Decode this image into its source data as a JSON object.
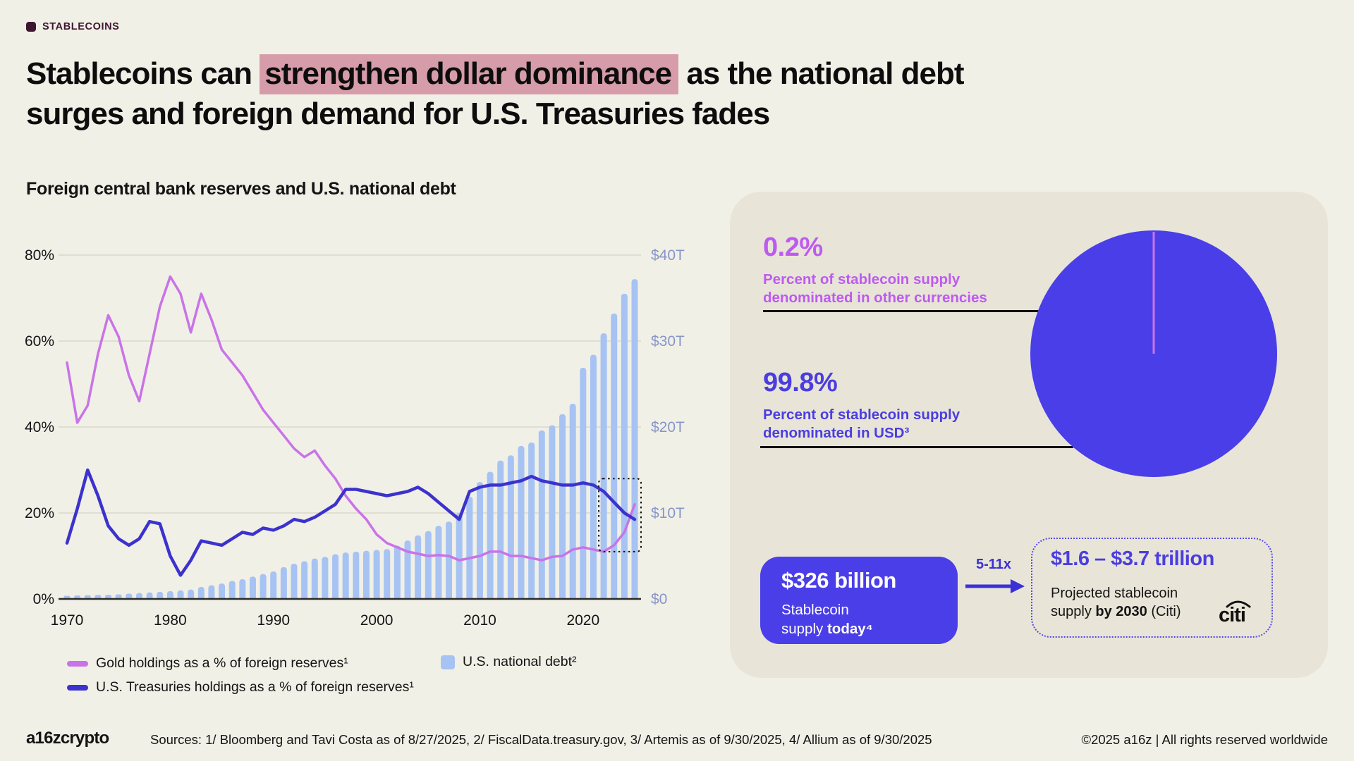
{
  "colors": {
    "background": "#F1F0E7",
    "panel_bg": "#E8E5D8",
    "tag": "#3F1630",
    "highlight_bg": "#D69CA9",
    "grid": "#DAD8CC",
    "right_axis_text": "#8796C8",
    "stat_purple": "#BE5AF0",
    "stat_indigo": "#4B3EDF",
    "pie_indigo": "#4A3EE8",
    "arrow": "#3B30D6",
    "dotted_border": "#5348E8"
  },
  "tag": {
    "label": "STABLECOINS"
  },
  "headline": {
    "line1_pre": "Stablecoins can ",
    "line1_highlight": "strengthen dollar dominance",
    "line1_post": " as the national debt",
    "line2": "surges and foreign demand for U.S. Treasuries fades"
  },
  "chart": {
    "title": "Foreign central bank reserves and U.S. national debt"
  },
  "chart_data": {
    "type": "combo-bar-line",
    "title": "Foreign central bank reserves and U.S. national debt",
    "years": [
      1970,
      1971,
      1972,
      1973,
      1974,
      1975,
      1976,
      1977,
      1978,
      1979,
      1980,
      1981,
      1982,
      1983,
      1984,
      1985,
      1986,
      1987,
      1988,
      1989,
      1990,
      1991,
      1992,
      1993,
      1994,
      1995,
      1996,
      1997,
      1998,
      1999,
      2000,
      2001,
      2002,
      2003,
      2004,
      2005,
      2006,
      2007,
      2008,
      2009,
      2010,
      2011,
      2012,
      2013,
      2014,
      2015,
      2016,
      2017,
      2018,
      2019,
      2020,
      2021,
      2022,
      2023,
      2024,
      2025
    ],
    "series": [
      {
        "name": "Gold holdings as a % of foreign reserves¹",
        "type": "line",
        "axis": "left",
        "color": "#C973E8",
        "values": [
          55,
          41,
          45,
          57,
          66,
          61,
          52,
          46,
          57,
          68,
          75,
          71,
          62,
          71,
          65,
          58,
          55,
          52,
          48,
          44,
          41,
          38,
          35,
          33,
          34.5,
          31,
          28,
          24,
          21,
          18.5,
          15,
          13,
          12,
          11,
          10.5,
          10,
          10.2,
          10,
          9,
          9.5,
          10,
          11,
          11,
          10,
          10,
          9.5,
          9,
          9.8,
          10,
          11.5,
          12,
          11.5,
          11,
          12.5,
          15.5,
          22
        ]
      },
      {
        "name": "U.S. Treasuries holdings as a % of foreign reserves¹",
        "type": "line",
        "axis": "left",
        "color": "#3C32CD",
        "values": [
          13,
          21,
          30,
          24,
          17,
          14,
          12.5,
          14,
          18,
          17.5,
          10,
          5.5,
          9,
          13.5,
          13,
          12.5,
          14,
          15.5,
          15,
          16.5,
          16,
          17,
          18.5,
          18,
          19,
          20.5,
          22,
          25.5,
          25.5,
          25,
          24.5,
          24,
          24.5,
          25,
          26,
          24.5,
          22.5,
          20.5,
          18.5,
          25,
          26,
          26.5,
          26.5,
          27,
          27.5,
          28.5,
          27.5,
          27,
          26.5,
          26.5,
          27,
          26.5,
          25,
          22.5,
          20,
          18.5
        ]
      },
      {
        "name": "U.S. national debt²",
        "type": "bar",
        "axis": "right",
        "color": "#A6C3F3",
        "values": [
          0.37,
          0.4,
          0.43,
          0.46,
          0.48,
          0.53,
          0.62,
          0.7,
          0.77,
          0.83,
          0.91,
          1.0,
          1.1,
          1.4,
          1.6,
          1.8,
          2.1,
          2.3,
          2.6,
          2.9,
          3.2,
          3.7,
          4.1,
          4.4,
          4.7,
          4.9,
          5.2,
          5.4,
          5.5,
          5.6,
          5.7,
          5.8,
          6.2,
          6.8,
          7.4,
          7.9,
          8.5,
          9.0,
          10.0,
          11.9,
          13.6,
          14.8,
          16.1,
          16.7,
          17.8,
          18.2,
          19.6,
          20.2,
          21.5,
          22.7,
          26.9,
          28.4,
          30.9,
          33.2,
          35.5,
          37.2
        ]
      }
    ],
    "left_axis": {
      "range": [
        0,
        80
      ],
      "tick_values": [
        0,
        20,
        40,
        60,
        80
      ],
      "tick_labels": [
        "0%",
        "20%",
        "40%",
        "60%",
        "80%"
      ]
    },
    "right_axis": {
      "range": [
        0,
        40
      ],
      "tick_values": [
        0,
        10,
        20,
        30,
        40
      ],
      "tick_labels": [
        "$0",
        "$10T",
        "$20T",
        "$30T",
        "$40T"
      ]
    },
    "x_ticks": {
      "values": [
        1970,
        1980,
        1990,
        2000,
        2010,
        2020
      ],
      "labels": [
        "1970",
        "1980",
        "1990",
        "2000",
        "2010",
        "2020"
      ]
    },
    "annotation_box": {
      "year_start": 2022,
      "year_end": 2025,
      "value_min": 11,
      "value_max": 28,
      "axis": "left"
    },
    "grid": true,
    "legend_position": "bottom"
  },
  "panel": {
    "stat_other": {
      "value": "0.2%",
      "caption": "Percent of stablecoin supply\ndenominated in other currencies"
    },
    "stat_usd": {
      "value": "99.8%",
      "caption": "Percent of stablecoin supply\ndenominated in USD³"
    },
    "pie": {
      "type": "pie",
      "slices": [
        {
          "label": "Stablecoin supply denominated in USD",
          "value": 99.8,
          "color": "#4A3EE8"
        },
        {
          "label": "Stablecoin supply denominated in other currencies",
          "value": 0.2,
          "color": "#C973E8"
        }
      ]
    },
    "supply_box": {
      "value": "$326 billion",
      "line1": "Stablecoin",
      "line2_pre": "supply ",
      "line2_bold": "today⁴"
    },
    "multiplier": "5-11x",
    "projection": {
      "value": "$1.6 – $3.7 trillion",
      "line1": "Projected stablecoin",
      "line2_pre": "supply ",
      "line2_bold": "by 2030",
      "line2_post": " (Citi)",
      "logo_text": "citi"
    }
  },
  "footer": {
    "logo": "a16zcrypto",
    "sources": "Sources: 1/ Bloomberg and Tavi Costa as of 8/27/2025, 2/ FiscalData.treasury.gov, 3/ Artemis as of 9/30/2025, 4/ Allium as of 9/30/2025",
    "rights": "©2025 a16z | All rights reserved worldwide"
  }
}
